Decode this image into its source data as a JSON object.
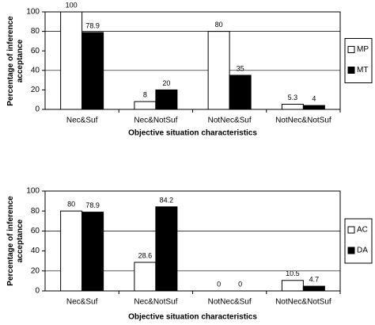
{
  "chart_data": [
    {
      "type": "bar",
      "xlabel": "Objective situation characteristics",
      "ylabel": "Percentage of inference acceptance",
      "categories": [
        "Nec&Suf",
        "Nec&NotSuf",
        "NotNec&Suf",
        "NotNec&NotSuf"
      ],
      "series": [
        {
          "name": "MP",
          "color": "#ffffff",
          "values": [
            100,
            8,
            80,
            5.3
          ]
        },
        {
          "name": "MT",
          "color": "#000000",
          "values": [
            78.9,
            20,
            35,
            4
          ]
        }
      ],
      "ylim": [
        0,
        100
      ],
      "yticks": [
        0,
        20,
        40,
        60,
        80,
        100
      ],
      "grid_lines": [
        40,
        80
      ],
      "legend": "right"
    },
    {
      "type": "bar",
      "xlabel": "Objective situation characteristics",
      "ylabel": "Percentage of inference acceptance",
      "categories": [
        "Nec&Suf",
        "Nec&NotSuf",
        "NotNec&Suf",
        "NotNec&NotSuf"
      ],
      "series": [
        {
          "name": "AC",
          "color": "#ffffff",
          "values": [
            80,
            28.6,
            0,
            10.5
          ]
        },
        {
          "name": "DA",
          "color": "#000000",
          "values": [
            78.9,
            84.2,
            0,
            4.7
          ]
        }
      ],
      "ylim": [
        0,
        100
      ],
      "yticks": [
        0,
        20,
        40,
        60,
        80,
        100
      ],
      "grid_lines": [
        20,
        60
      ],
      "legend": "right"
    }
  ]
}
